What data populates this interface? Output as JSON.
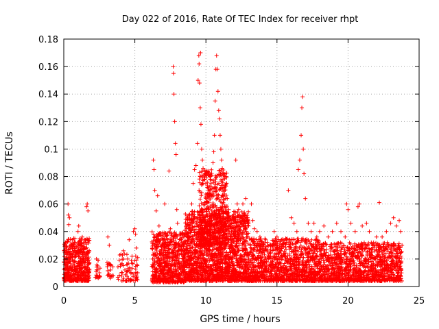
{
  "chart_data": {
    "type": "scatter",
    "title": "Day 022 of 2016, Rate Of TEC Index for receiver rhpt",
    "xlabel": "GPS time / hours",
    "ylabel": "ROTI / TECUs",
    "xlim": [
      0,
      25
    ],
    "ylim": [
      0,
      0.18
    ],
    "xticks": [
      0,
      5,
      10,
      15,
      20,
      25
    ],
    "xtick_labels": [
      "0",
      "5",
      "10",
      "15",
      "20",
      "25"
    ],
    "yticks": [
      0,
      0.02,
      0.04,
      0.06,
      0.08,
      0.1,
      0.12,
      0.14,
      0.16,
      0.18
    ],
    "ytick_labels": [
      "0",
      "0.02",
      "0.04",
      "0.06",
      "0.08",
      "0.1",
      "0.12",
      "0.14",
      "0.16",
      "0.18"
    ],
    "grid": true,
    "marker": "+",
    "color": "#ff0000",
    "series": [
      {
        "name": "ROTI",
        "points": [
          [
            0.1,
            0.032
          ],
          [
            0.15,
            0.018
          ],
          [
            0.2,
            0.012
          ],
          [
            0.25,
            0.025
          ],
          [
            0.3,
            0.06
          ],
          [
            0.32,
            0.052
          ],
          [
            0.35,
            0.045
          ],
          [
            0.4,
            0.05
          ],
          [
            0.45,
            0.028
          ],
          [
            0.5,
            0.015
          ],
          [
            0.6,
            0.022
          ],
          [
            0.7,
            0.035
          ],
          [
            0.8,
            0.018
          ],
          [
            0.9,
            0.012
          ],
          [
            1.0,
            0.04
          ],
          [
            1.05,
            0.044
          ],
          [
            1.1,
            0.026
          ],
          [
            1.2,
            0.03
          ],
          [
            1.3,
            0.036
          ],
          [
            1.4,
            0.02
          ],
          [
            1.5,
            0.034
          ],
          [
            1.6,
            0.058
          ],
          [
            1.65,
            0.06
          ],
          [
            1.7,
            0.055
          ],
          [
            1.75,
            0.016
          ],
          [
            1.8,
            0.012
          ],
          [
            0.1,
            0.01
          ],
          [
            0.5,
            0.008
          ],
          [
            1.0,
            0.009
          ],
          [
            1.5,
            0.01
          ],
          [
            2.3,
            0.02
          ],
          [
            2.4,
            0.012
          ],
          [
            2.5,
            0.01
          ],
          [
            3.1,
            0.036
          ],
          [
            3.2,
            0.03
          ],
          [
            3.3,
            0.012
          ],
          [
            3.4,
            0.008
          ],
          [
            4.0,
            0.016
          ],
          [
            4.2,
            0.026
          ],
          [
            4.3,
            0.012
          ],
          [
            4.5,
            0.02
          ],
          [
            4.6,
            0.034
          ],
          [
            4.8,
            0.022
          ],
          [
            4.9,
            0.04
          ],
          [
            5.0,
            0.042
          ],
          [
            5.05,
            0.038
          ],
          [
            5.1,
            0.028
          ],
          [
            5.15,
            0.016
          ],
          [
            5.2,
            0.01
          ],
          [
            5.1,
            0.006
          ],
          [
            6.3,
            0.092
          ],
          [
            6.35,
            0.085
          ],
          [
            6.4,
            0.07
          ],
          [
            6.5,
            0.055
          ],
          [
            6.6,
            0.066
          ],
          [
            6.7,
            0.044
          ],
          [
            6.8,
            0.038
          ],
          [
            6.9,
            0.03
          ],
          [
            7.0,
            0.02
          ],
          [
            7.1,
            0.06
          ],
          [
            7.2,
            0.018
          ],
          [
            7.3,
            0.025
          ],
          [
            7.4,
            0.084
          ],
          [
            7.5,
            0.042
          ],
          [
            7.6,
            0.034
          ],
          [
            7.7,
            0.16
          ],
          [
            7.72,
            0.155
          ],
          [
            7.75,
            0.14
          ],
          [
            7.8,
            0.12
          ],
          [
            7.85,
            0.104
          ],
          [
            7.9,
            0.096
          ],
          [
            7.95,
            0.056
          ],
          [
            8.0,
            0.046
          ],
          [
            8.2,
            0.03
          ],
          [
            8.4,
            0.022
          ],
          [
            8.6,
            0.028
          ],
          [
            8.8,
            0.052
          ],
          [
            9.0,
            0.06
          ],
          [
            9.1,
            0.075
          ],
          [
            9.2,
            0.085
          ],
          [
            9.3,
            0.088
          ],
          [
            9.4,
            0.104
          ],
          [
            9.45,
            0.15
          ],
          [
            9.5,
            0.168
          ],
          [
            9.52,
            0.162
          ],
          [
            9.55,
            0.148
          ],
          [
            9.6,
            0.13
          ],
          [
            9.62,
            0.17
          ],
          [
            9.65,
            0.118
          ],
          [
            9.7,
            0.1
          ],
          [
            9.75,
            0.092
          ],
          [
            9.8,
            0.086
          ],
          [
            9.9,
            0.078
          ],
          [
            10.0,
            0.064
          ],
          [
            10.1,
            0.072
          ],
          [
            10.2,
            0.056
          ],
          [
            10.3,
            0.08
          ],
          [
            10.4,
            0.066
          ],
          [
            10.5,
            0.09
          ],
          [
            10.55,
            0.098
          ],
          [
            10.6,
            0.11
          ],
          [
            10.65,
            0.135
          ],
          [
            10.7,
            0.158
          ],
          [
            10.75,
            0.168
          ],
          [
            10.8,
            0.158
          ],
          [
            10.85,
            0.142
          ],
          [
            10.9,
            0.128
          ],
          [
            10.95,
            0.122
          ],
          [
            11.0,
            0.11
          ],
          [
            11.05,
            0.1
          ],
          [
            11.1,
            0.092
          ],
          [
            11.15,
            0.086
          ],
          [
            11.2,
            0.078
          ],
          [
            11.3,
            0.07
          ],
          [
            11.4,
            0.08
          ],
          [
            11.5,
            0.064
          ],
          [
            11.6,
            0.056
          ],
          [
            11.7,
            0.048
          ],
          [
            11.8,
            0.04
          ],
          [
            11.9,
            0.05
          ],
          [
            12.0,
            0.036
          ],
          [
            12.1,
            0.092
          ],
          [
            12.2,
            0.06
          ],
          [
            12.3,
            0.056
          ],
          [
            12.4,
            0.05
          ],
          [
            12.5,
            0.046
          ],
          [
            12.6,
            0.06
          ],
          [
            12.7,
            0.054
          ],
          [
            12.8,
            0.064
          ],
          [
            12.9,
            0.05
          ],
          [
            13.0,
            0.044
          ],
          [
            13.2,
            0.06
          ],
          [
            13.3,
            0.048
          ],
          [
            13.4,
            0.042
          ],
          [
            13.6,
            0.04
          ],
          [
            13.8,
            0.036
          ],
          [
            14.0,
            0.03
          ],
          [
            14.2,
            0.034
          ],
          [
            14.5,
            0.03
          ],
          [
            14.8,
            0.04
          ],
          [
            15.0,
            0.036
          ],
          [
            15.2,
            0.028
          ],
          [
            15.5,
            0.024
          ],
          [
            15.8,
            0.07
          ],
          [
            16.0,
            0.05
          ],
          [
            16.2,
            0.046
          ],
          [
            16.4,
            0.04
          ],
          [
            16.5,
            0.085
          ],
          [
            16.6,
            0.092
          ],
          [
            16.7,
            0.11
          ],
          [
            16.75,
            0.13
          ],
          [
            16.8,
            0.138
          ],
          [
            16.85,
            0.1
          ],
          [
            16.9,
            0.082
          ],
          [
            17.0,
            0.064
          ],
          [
            17.2,
            0.046
          ],
          [
            17.4,
            0.04
          ],
          [
            17.6,
            0.046
          ],
          [
            17.8,
            0.036
          ],
          [
            18.0,
            0.04
          ],
          [
            18.3,
            0.044
          ],
          [
            18.6,
            0.036
          ],
          [
            18.9,
            0.04
          ],
          [
            19.2,
            0.046
          ],
          [
            19.5,
            0.04
          ],
          [
            19.8,
            0.036
          ],
          [
            19.9,
            0.06
          ],
          [
            20.0,
            0.056
          ],
          [
            20.2,
            0.046
          ],
          [
            20.5,
            0.04
          ],
          [
            20.7,
            0.058
          ],
          [
            20.8,
            0.06
          ],
          [
            21.0,
            0.044
          ],
          [
            21.3,
            0.046
          ],
          [
            21.5,
            0.04
          ],
          [
            21.8,
            0.032
          ],
          [
            22.0,
            0.036
          ],
          [
            22.2,
            0.061
          ],
          [
            22.4,
            0.036
          ],
          [
            22.7,
            0.04
          ],
          [
            23.0,
            0.046
          ],
          [
            23.2,
            0.05
          ],
          [
            23.4,
            0.044
          ],
          [
            23.6,
            0.048
          ],
          [
            23.7,
            0.04
          ],
          [
            23.8,
            0.03
          ],
          [
            12.5,
            0.006
          ],
          [
            15.0,
            0.008
          ],
          [
            20.0,
            0.006
          ],
          [
            9.0,
            0.004
          ]
        ],
        "dense_bands": [
          {
            "x_range": [
              0.0,
              1.8
            ],
            "y_range": [
              0.004,
              0.035
            ],
            "count": 500
          },
          {
            "x_range": [
              2.2,
              2.6
            ],
            "y_range": [
              0.006,
              0.02
            ],
            "count": 20
          },
          {
            "x_range": [
              3.0,
              3.5
            ],
            "y_range": [
              0.006,
              0.02
            ],
            "count": 20
          },
          {
            "x_range": [
              3.8,
              5.2
            ],
            "y_range": [
              0.004,
              0.025
            ],
            "count": 70
          },
          {
            "x_range": [
              6.2,
              8.5
            ],
            "y_range": [
              0.003,
              0.04
            ],
            "count": 650
          },
          {
            "x_range": [
              8.5,
              13.0
            ],
            "y_range": [
              0.004,
              0.055
            ],
            "count": 1700
          },
          {
            "x_range": [
              9.5,
              11.5
            ],
            "y_range": [
              0.03,
              0.085
            ],
            "count": 500
          },
          {
            "x_range": [
              13.0,
              18.0
            ],
            "y_range": [
              0.004,
              0.035
            ],
            "count": 1100
          },
          {
            "x_range": [
              18.0,
              23.8
            ],
            "y_range": [
              0.004,
              0.032
            ],
            "count": 1200
          }
        ]
      }
    ]
  }
}
